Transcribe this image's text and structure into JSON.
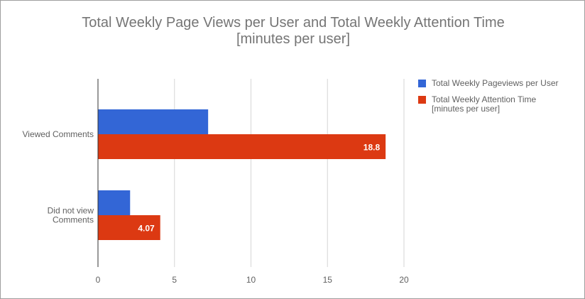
{
  "chart_data": {
    "type": "bar",
    "orientation": "horizontal",
    "title_lines": [
      "Total Weekly Page Views per User and Total Weekly Attention Time",
      "[minutes per user]"
    ],
    "categories": [
      [
        "Viewed Comments"
      ],
      [
        "Did not view",
        "Comments"
      ]
    ],
    "series": [
      {
        "name_lines": [
          "Total Weekly Pageviews per User"
        ],
        "color": "#3366d6",
        "values": [
          7.2,
          2.1
        ],
        "data_labels": [
          "",
          ""
        ]
      },
      {
        "name_lines": [
          "Total Weekly Attention Time",
          "[minutes per user]"
        ],
        "color": "#dc3912",
        "values": [
          18.8,
          4.07
        ],
        "data_labels": [
          "18.8",
          "4.07"
        ]
      }
    ],
    "xlim": [
      0,
      20
    ],
    "xticks": [
      "0",
      "5",
      "10",
      "15",
      "20"
    ],
    "grid": true,
    "legend_position": "right"
  }
}
